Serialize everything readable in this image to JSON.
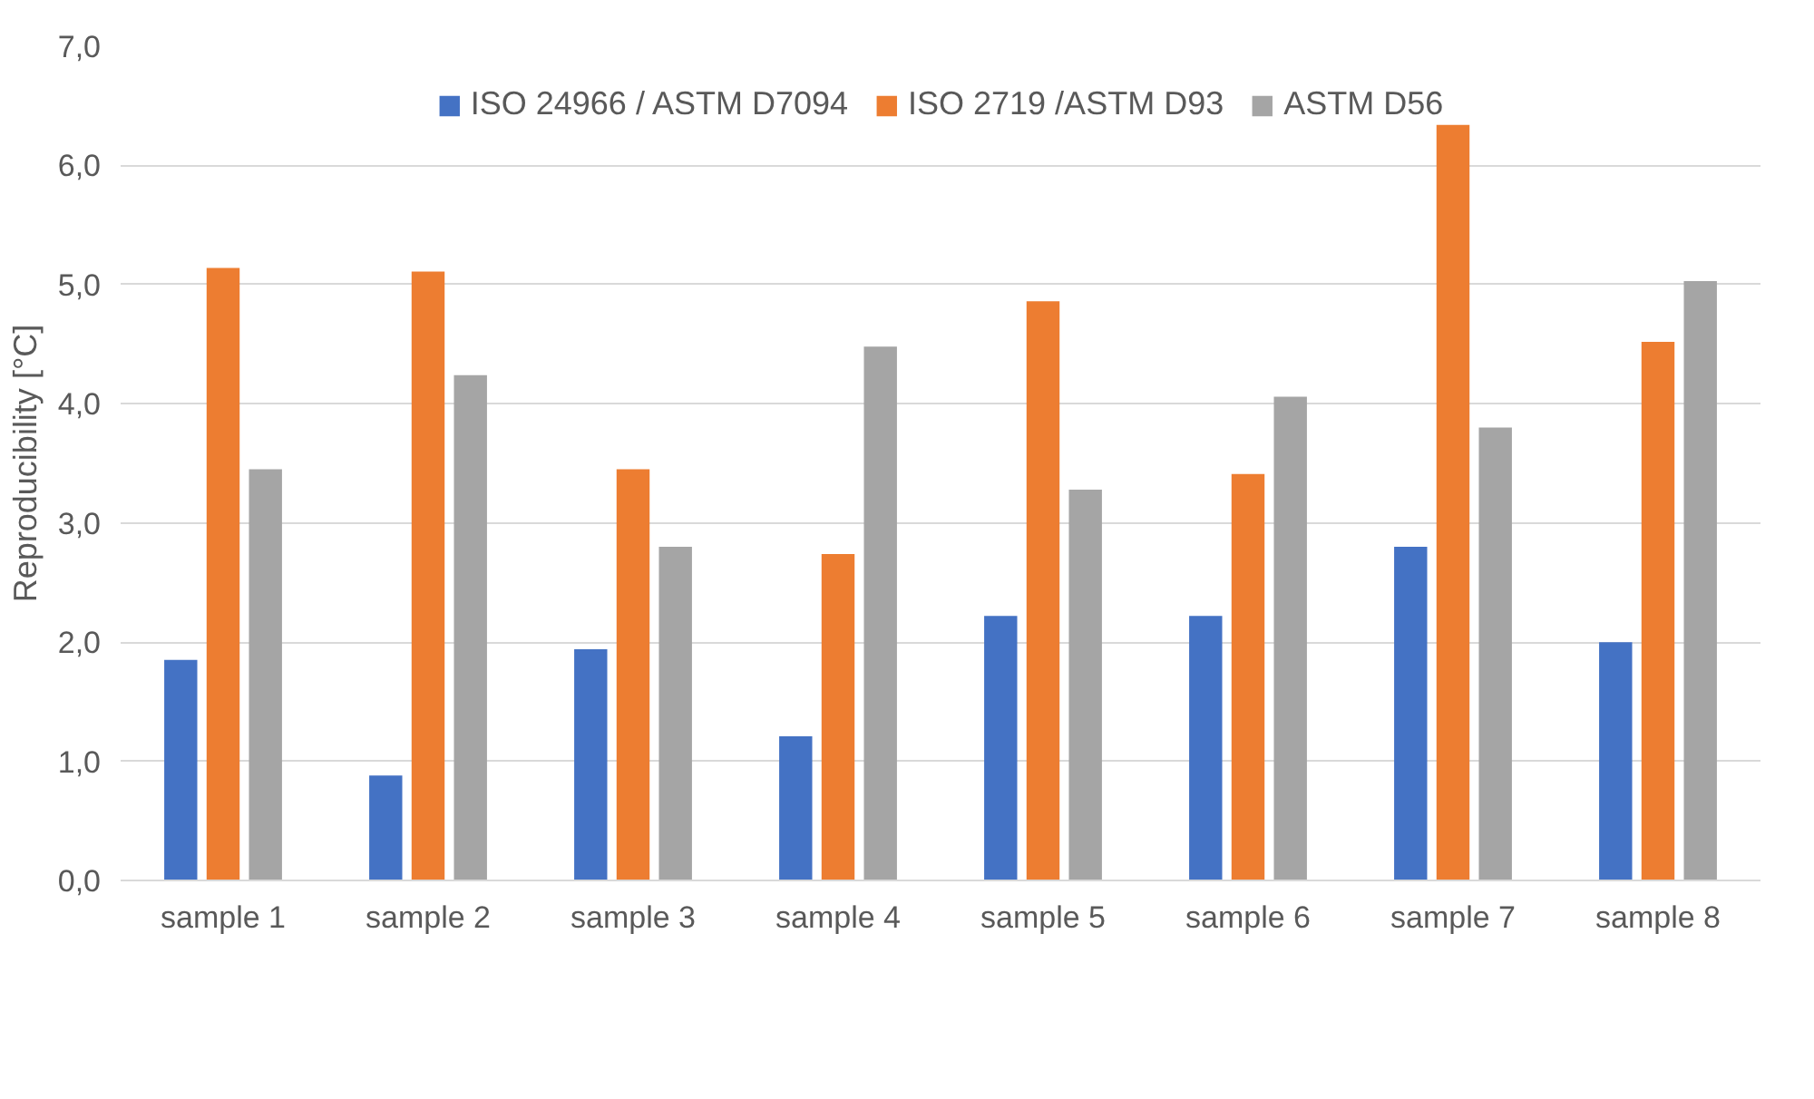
{
  "chart_data": {
    "type": "bar",
    "ylabel": "Reproducibility [°C]",
    "categories": [
      "sample 1",
      "sample 2",
      "sample 3",
      "sample 4",
      "sample 5",
      "sample 6",
      "sample 7",
      "sample 8"
    ],
    "series": [
      {
        "name": "ISO 24966 / ASTM D7094",
        "color": "#4472c4",
        "values": [
          1.85,
          0.88,
          1.94,
          1.21,
          2.22,
          2.22,
          2.8,
          2.0
        ]
      },
      {
        "name": "ISO 2719 /ASTM D93",
        "color": "#ed7d31",
        "values": [
          5.14,
          5.11,
          3.45,
          2.74,
          4.86,
          3.41,
          6.34,
          4.52
        ]
      },
      {
        "name": "ASTM D56",
        "color": "#a5a5a5",
        "values": [
          3.45,
          4.24,
          2.8,
          4.48,
          3.28,
          4.06,
          3.8,
          5.03
        ]
      }
    ],
    "ylim": [
      0,
      7
    ],
    "yticks": [
      {
        "value": 0,
        "label": "0,0"
      },
      {
        "value": 1,
        "label": "1,0"
      },
      {
        "value": 2,
        "label": "2,0"
      },
      {
        "value": 3,
        "label": "3,0"
      },
      {
        "value": 4,
        "label": "4,0"
      },
      {
        "value": 5,
        "label": "5,0"
      },
      {
        "value": 6,
        "label": "6,0"
      },
      {
        "value": 7,
        "label": "7,0"
      }
    ],
    "grid": "y",
    "legend": "top"
  }
}
